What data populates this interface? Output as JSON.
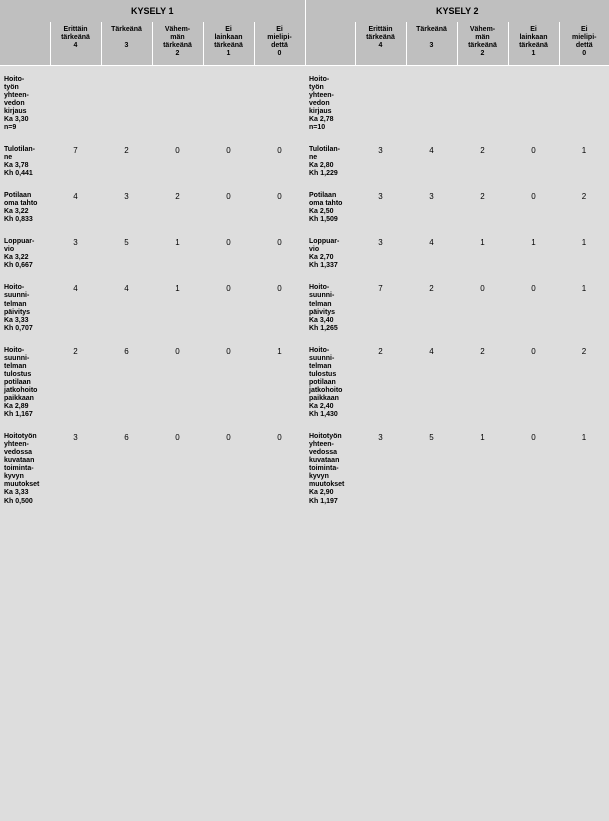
{
  "survey_headers": [
    "KYSELY 1",
    "KYSELY 2"
  ],
  "col_headers": [
    [
      "Erittäin",
      "tärkeänä",
      "4"
    ],
    [
      "Tärkeänä",
      "",
      "3"
    ],
    [
      "Vähem-",
      "män",
      "tärkeänä",
      "2"
    ],
    [
      "Ei",
      "lainkaan",
      "tärkeänä",
      "1"
    ],
    [
      "Ei",
      "mielipi-",
      "dettä",
      "0"
    ]
  ],
  "section": {
    "left_label": "Hoito-\ntyön\nyhteen-\nvedon\nkirjaus\nKa 3,30\nn=9",
    "right_label": "Hoito-\ntyön\nyhteen-\nvedon\nkirjaus\nKa 2,78\nn=10"
  },
  "rows": [
    {
      "left_label": "Tulotilan-\nne\nKa 3,78\nKh 0,441",
      "left_vals": [
        "7",
        "2",
        "0",
        "0",
        "0"
      ],
      "right_label": "Tulotilan-\nne\nKa 2,80\nKh 1,229",
      "right_vals": [
        "3",
        "4",
        "2",
        "0",
        "1"
      ]
    },
    {
      "left_label": "Potilaan\noma tahto\nKa 3,22\nKh 0,833",
      "left_vals": [
        "4",
        "3",
        "2",
        "0",
        "0"
      ],
      "right_label": "Potilaan\noma tahto\nKa 2,50\nKh 1,509",
      "right_vals": [
        "3",
        "3",
        "2",
        "0",
        "2"
      ]
    },
    {
      "left_label": "Loppuar-\nvio\nKa 3,22\nKh 0,667",
      "left_vals": [
        "3",
        "5",
        "1",
        "0",
        "0"
      ],
      "right_label": "Loppuar-\nvio\nKa 2,70\nKh 1,337",
      "right_vals": [
        "3",
        "4",
        "1",
        "1",
        "1"
      ]
    },
    {
      "left_label": "Hoito-\nsuunni-\ntelman\npäivitys\nKa 3,33\nKh 0,707",
      "left_vals": [
        "4",
        "4",
        "1",
        "0",
        "0"
      ],
      "right_label": "Hoito-\nsuunni-\ntelman\npäivitys\nKa 3,40\nKh 1,265",
      "right_vals": [
        "7",
        "2",
        "0",
        "0",
        "1"
      ]
    },
    {
      "left_label": "Hoito-\nsuunni-\ntelman\ntulostus\npotilaan\njatkohoito\npaikkaan\nKa 2,89\nKh 1,167",
      "left_vals": [
        "2",
        "6",
        "0",
        "0",
        "1"
      ],
      "right_label": "Hoito-\nsuunni-\ntelman\ntulostus\npotilaan\njatkohoito\npaikkaan\nKa 2,40\nKh 1,430",
      "right_vals": [
        "2",
        "4",
        "2",
        "0",
        "2"
      ]
    },
    {
      "left_label": "Hoitotyön\nyhteen-\nvedossa\nkuvataan\ntoiminta-\nkyvyn\nmuutokset\nKa 3,33\nKh 0,500",
      "left_vals": [
        "3",
        "6",
        "0",
        "0",
        "0"
      ],
      "right_label": "Hoitotyön\nyhteen-\nvedossa\nkuvataan\ntoiminta-\nkyvyn\nmuutokset\nKa 2,90\nKh 1,197",
      "right_vals": [
        "3",
        "5",
        "1",
        "0",
        "1"
      ]
    }
  ]
}
